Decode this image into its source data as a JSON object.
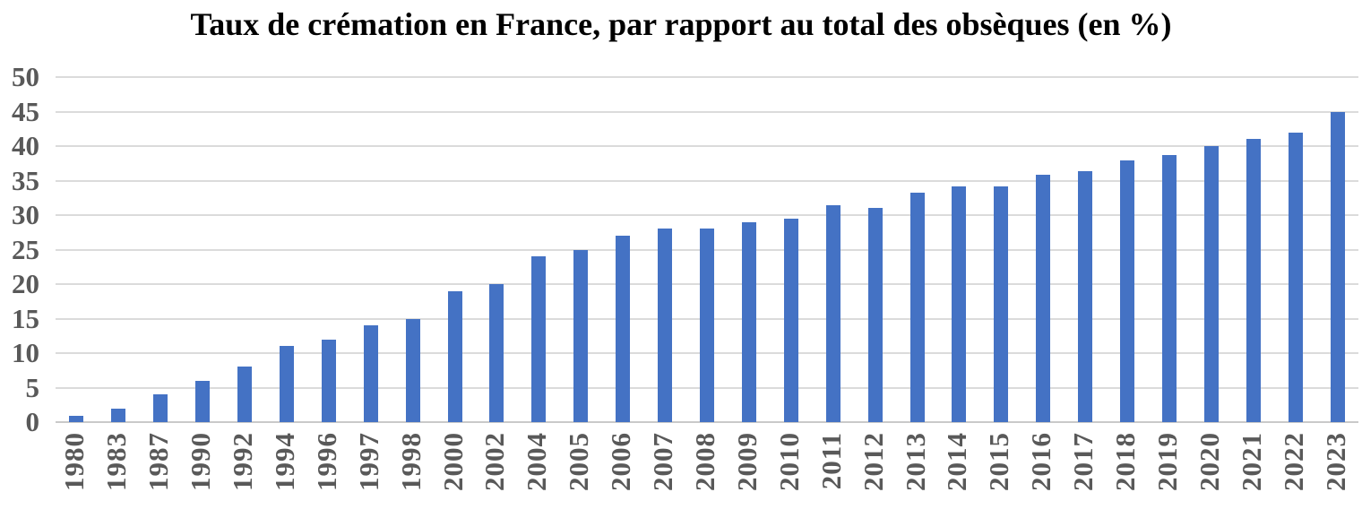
{
  "chart_data": {
    "type": "bar",
    "title": "Taux de crémation en France, par rapport au total des obsèques (en %)",
    "categories": [
      "1980",
      "1983",
      "1987",
      "1990",
      "1992",
      "1994",
      "1996",
      "1997",
      "1998",
      "2000",
      "2002",
      "2004",
      "2005",
      "2006",
      "2007",
      "2008",
      "2009",
      "2010",
      "2011",
      "2012",
      "2013",
      "2014",
      "2015",
      "2016",
      "2017",
      "2018",
      "2019",
      "2020",
      "2021",
      "2022",
      "2023"
    ],
    "values": [
      0.9,
      2,
      4,
      6,
      8,
      11,
      12,
      14,
      15,
      19,
      20,
      24,
      25,
      27,
      28,
      28,
      29,
      29.5,
      31.4,
      31,
      33.3,
      34.2,
      34.1,
      35.8,
      36.3,
      37.9,
      38.7,
      40,
      41,
      42,
      45
    ],
    "xlabel": "",
    "ylabel": "",
    "ylim": [
      0,
      50
    ],
    "ytick_step": 5,
    "yticks": [
      "0",
      "5",
      "10",
      "15",
      "20",
      "25",
      "30",
      "35",
      "40",
      "45",
      "50"
    ],
    "x_tick_rotation": 90,
    "grid": "horizontal",
    "legend": "none",
    "colors": {
      "bar": "#4472C4",
      "gridline": "#DBDBDB",
      "axis_line": "#C9C9C9",
      "tick_labels": "#595959",
      "title": "#000000",
      "background": "#FFFFFF"
    }
  }
}
